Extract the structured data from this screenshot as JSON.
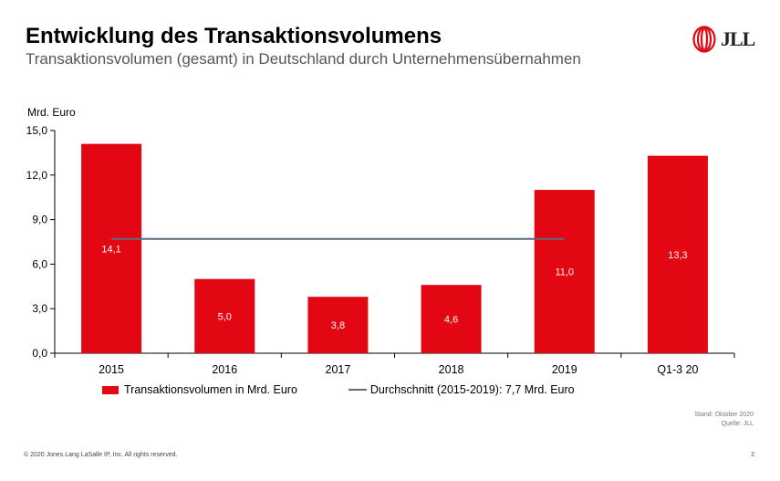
{
  "header": {
    "title": "Entwicklung des Transaktionsvolumens",
    "subtitle": "Transaktionsvolumen (gesamt) in Deutschland durch Unternehmensübernahmen",
    "logo_text": "JLL",
    "logo_color": "#e30613"
  },
  "chart_data": {
    "type": "bar",
    "ylabel": "Mrd. Euro",
    "ylim": [
      0,
      15
    ],
    "yticks": [
      "0,0",
      "3,0",
      "6,0",
      "9,0",
      "12,0",
      "15,0"
    ],
    "ytick_values": [
      0,
      3,
      6,
      9,
      12,
      15
    ],
    "categories": [
      "2015",
      "2016",
      "2017",
      "2018",
      "2019",
      "Q1-3 20"
    ],
    "series": [
      {
        "name": "Transaktionsvolumen in Mrd. Euro",
        "type": "bar",
        "color": "#e30613",
        "values": [
          14.1,
          5.0,
          3.8,
          4.6,
          11.0,
          13.3
        ],
        "labels": [
          "14,1",
          "5,0",
          "3,8",
          "4,6",
          "11,0",
          "13,3"
        ]
      },
      {
        "name": "Durchschnitt (2015-2019): 7,7 Mrd. Euro",
        "type": "line",
        "color": "#5f6a7d",
        "value": 7.7,
        "x_range": [
          "2015",
          "2019"
        ]
      }
    ],
    "grid": false,
    "legend_position": "bottom"
  },
  "source": {
    "line1": "Stand: Oktober 2020",
    "line2": "Quelle: JLL"
  },
  "footer": {
    "copyright": "© 2020 Jones Lang LaSalle IP, Inc. All rights reserved.",
    "page_number": "2"
  }
}
